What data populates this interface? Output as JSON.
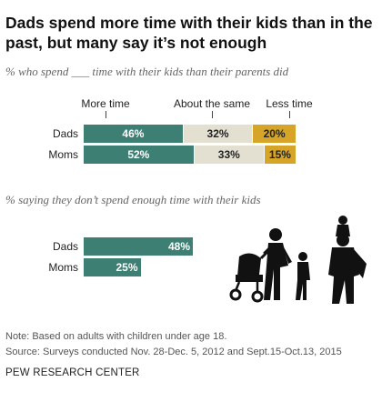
{
  "title": "Dads spend more time with their kids than in the past, but many say it’s not enough",
  "chart_data": [
    {
      "type": "bar",
      "stacked": true,
      "title": "% who spend ___ time with their kids than their parents did",
      "categories": [
        "Dads",
        "Moms"
      ],
      "series": [
        {
          "name": "More time",
          "values": [
            46,
            52
          ],
          "color": "#3d7f72",
          "label_color": "#ffffff"
        },
        {
          "name": "About the same",
          "values": [
            32,
            33
          ],
          "color": "#e3e0d2",
          "label_color": "#222222"
        },
        {
          "name": "Less time",
          "values": [
            20,
            15
          ],
          "color": "#d6a528",
          "label_color": "#222222"
        }
      ],
      "value_suffix": "%"
    },
    {
      "type": "bar",
      "title": "% saying they don’t spend enough time with their kids",
      "categories": [
        "Dads",
        "Moms"
      ],
      "values": [
        48,
        25
      ],
      "color": "#3d7f72",
      "value_suffix": "%"
    }
  ],
  "note": "Note: Based on adults with children under age 18.",
  "source": "Source: Surveys conducted Nov. 28-Dec. 5, 2012 and Sept.15-Oct.13, 2015",
  "footer": "PEW RESEARCH CENTER",
  "illustration": "family-silhouette-icon"
}
